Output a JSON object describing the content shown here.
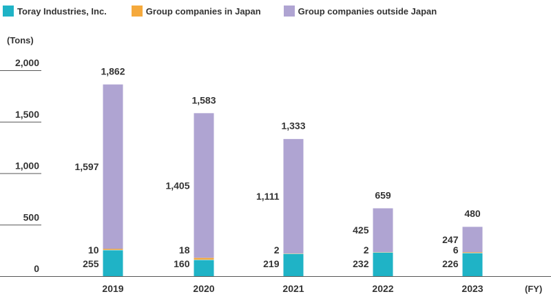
{
  "chart_data": {
    "type": "bar",
    "stacked": true,
    "categories": [
      "2019",
      "2020",
      "2021",
      "2022",
      "2023"
    ],
    "series": [
      {
        "name": "Toray Industries, Inc.",
        "values": [
          255,
          160,
          219,
          232,
          226
        ],
        "color": "#1fb3c6"
      },
      {
        "name": "Group companies in Japan",
        "values": [
          10,
          18,
          2,
          2,
          6
        ],
        "color": "#f5a93c"
      },
      {
        "name": "Group companies outside Japan",
        "values": [
          1597,
          1405,
          1111,
          425,
          247
        ],
        "color": "#afa4d2"
      }
    ],
    "totals": [
      1862,
      1583,
      1333,
      659,
      480
    ],
    "title": "",
    "ylabel": "(Tons)",
    "xlabel": "(FY)",
    "ylim": [
      0,
      2000
    ],
    "yticks": [
      0,
      500,
      1000,
      1500,
      2000
    ],
    "ytick_labels": [
      "0",
      "500",
      "1,000",
      "1,500",
      "2,000"
    ],
    "grid": false,
    "legend_position": "top-left"
  }
}
